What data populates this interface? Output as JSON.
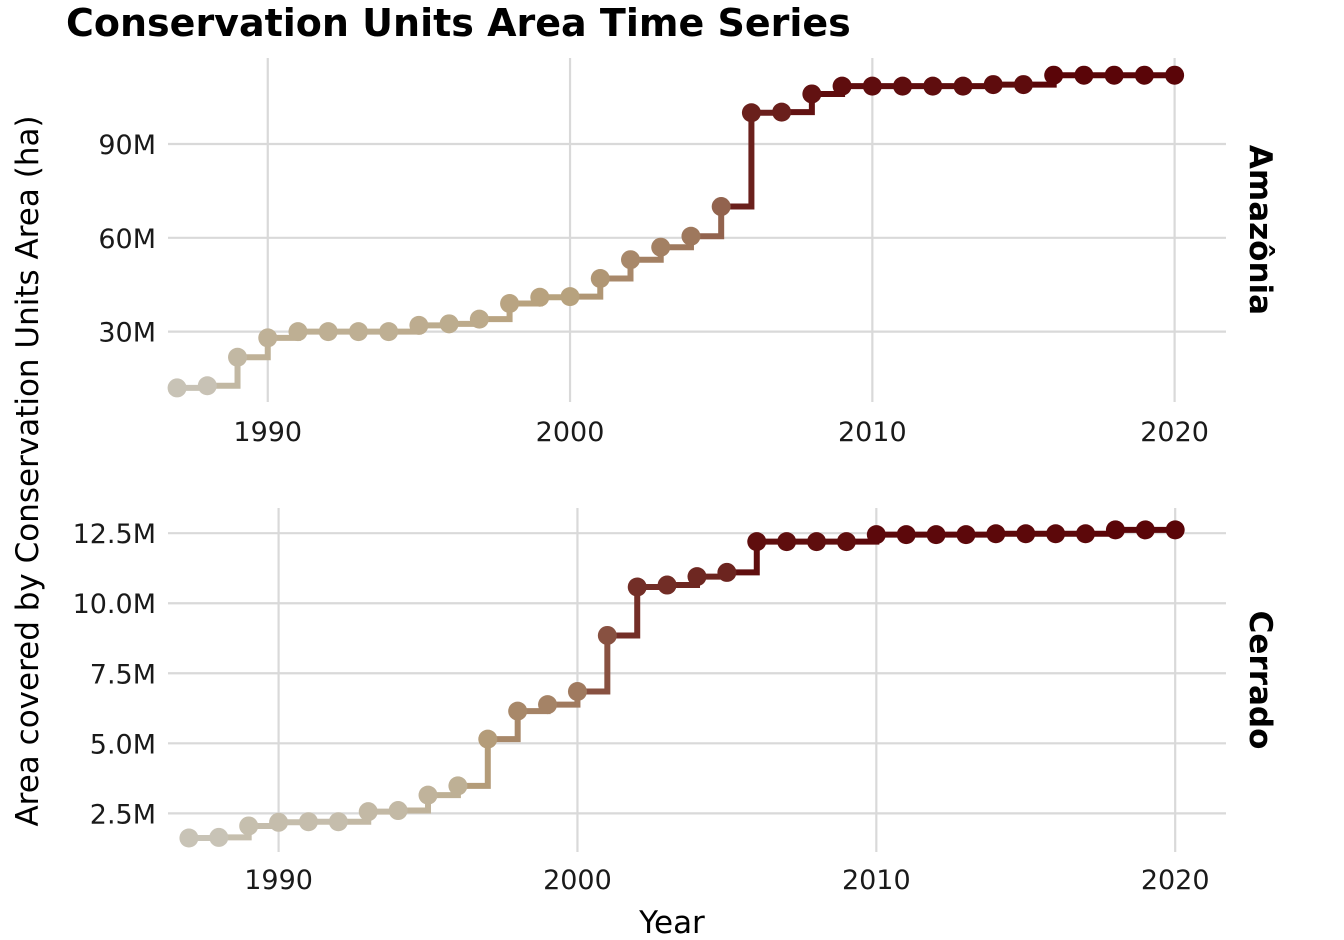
{
  "chart_data": {
    "type": "line",
    "title": "Conservation Units Area Time Series",
    "xlabel": "Year",
    "ylabel": "Area covered by Conservation Units Area (ha)",
    "color_low": "#c8c3b6",
    "color_mid": "#b7a17c",
    "color_high": "#5a0508",
    "panels": [
      {
        "name": "Amazônia",
        "xlim": [
          1986.7,
          2021.7
        ],
        "ylim": [
          7500000,
          117500000
        ],
        "x_ticks": [
          1990,
          2000,
          2010,
          2020
        ],
        "x_tick_labels": [
          "1990",
          "2000",
          "2010",
          "2020"
        ],
        "y_ticks": [
          30000000,
          60000000,
          90000000
        ],
        "y_tick_labels": [
          "30M",
          "60M",
          "90M"
        ],
        "x": [
          1987,
          1988,
          1989,
          1990,
          1991,
          1992,
          1993,
          1994,
          1995,
          1996,
          1997,
          1998,
          1999,
          2000,
          2001,
          2002,
          2003,
          2004,
          2005,
          2006,
          2007,
          2008,
          2009,
          2010,
          2011,
          2012,
          2013,
          2014,
          2015,
          2016,
          2017,
          2018,
          2019,
          2020
        ],
        "values": [
          12000000,
          12700000,
          21800000,
          28000000,
          30000000,
          30000000,
          30000000,
          30000000,
          32000000,
          32500000,
          34000000,
          39000000,
          41000000,
          41200000,
          47000000,
          53000000,
          57000000,
          60500000,
          70000000,
          100000000,
          100200000,
          106000000,
          108500000,
          108500000,
          108500000,
          108500000,
          108500000,
          109000000,
          109000000,
          112000000,
          112000000,
          112000000,
          112000000,
          112000000
        ]
      },
      {
        "name": "Cerrado",
        "xlim": [
          1986.3,
          2021.7
        ],
        "ylim": [
          1120000,
          13400000
        ],
        "x_ticks": [
          1990,
          2000,
          2010,
          2020
        ],
        "x_tick_labels": [
          "1990",
          "2000",
          "2010",
          "2020"
        ],
        "y_ticks": [
          2500000,
          5000000,
          7500000,
          10000000,
          12500000
        ],
        "y_tick_labels": [
          "2.5M",
          "5.0M",
          "7.5M",
          "10.0M",
          "12.5M"
        ],
        "x": [
          1987,
          1988,
          1989,
          1990,
          1991,
          1992,
          1993,
          1994,
          1995,
          1996,
          1997,
          1998,
          1999,
          2000,
          2001,
          2002,
          2003,
          2004,
          2005,
          2006,
          2007,
          2008,
          2009,
          2010,
          2011,
          2012,
          2013,
          2014,
          2015,
          2016,
          2017,
          2018,
          2019,
          2020
        ],
        "values": [
          1620000,
          1640000,
          2050000,
          2180000,
          2200000,
          2200000,
          2560000,
          2600000,
          3150000,
          3480000,
          5150000,
          6150000,
          6380000,
          6850000,
          8850000,
          10580000,
          10650000,
          10950000,
          11100000,
          12200000,
          12200000,
          12200000,
          12200000,
          12450000,
          12450000,
          12450000,
          12450000,
          12480000,
          12480000,
          12480000,
          12480000,
          12620000,
          12620000,
          12620000
        ]
      }
    ]
  }
}
